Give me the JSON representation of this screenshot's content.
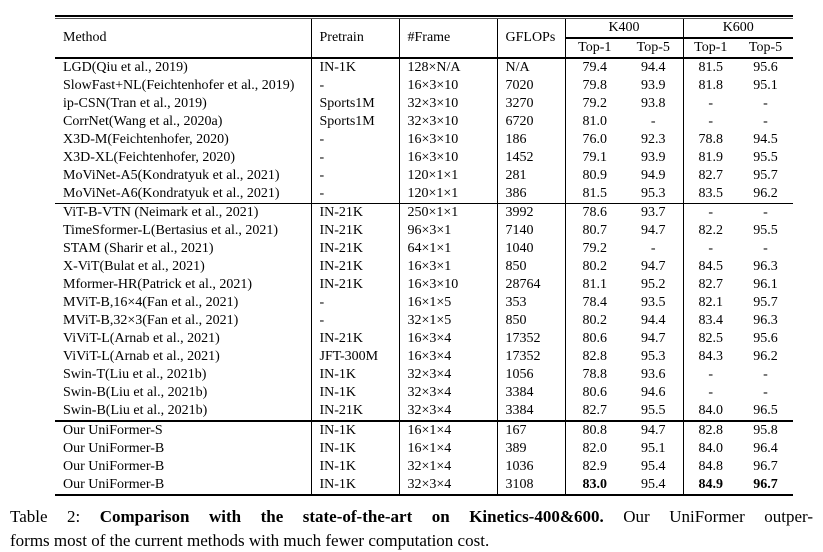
{
  "table": {
    "columns": [
      "method",
      "pretrain",
      "frame",
      "gflops",
      "k400-top1",
      "k400-top5",
      "k600-top1",
      "k600-top5"
    ],
    "headers": {
      "method": "Method",
      "pretrain": "Pretrain",
      "frame": "#Frame",
      "gflops": "GFLOPs",
      "k400": "K400",
      "k600": "K600",
      "top1": "Top-1",
      "top5": "Top-5"
    },
    "groups": [
      {
        "name": "cnn-methods",
        "rows": [
          {
            "cells": [
              "LGD(Qiu et al., 2019)",
              "IN-1K",
              "128×N/A",
              "N/A",
              "79.4",
              "94.4",
              "81.5",
              "95.6"
            ]
          },
          {
            "cells": [
              "SlowFast+NL(Feichtenhofer et al., 2019)",
              "-",
              "16×3×10",
              "7020",
              "79.8",
              "93.9",
              "81.8",
              "95.1"
            ]
          },
          {
            "cells": [
              "ip-CSN(Tran et al., 2019)",
              "Sports1M",
              "32×3×10",
              "3270",
              "79.2",
              "93.8",
              "-",
              "-"
            ]
          },
          {
            "cells": [
              "CorrNet(Wang et al., 2020a)",
              "Sports1M",
              "32×3×10",
              "6720",
              "81.0",
              "-",
              "-",
              "-"
            ]
          },
          {
            "cells": [
              "X3D-M(Feichtenhofer, 2020)",
              "-",
              "16×3×10",
              "186",
              "76.0",
              "92.3",
              "78.8",
              "94.5"
            ]
          },
          {
            "cells": [
              "X3D-XL(Feichtenhofer, 2020)",
              "-",
              "16×3×10",
              "1452",
              "79.1",
              "93.9",
              "81.9",
              "95.5"
            ]
          },
          {
            "cells": [
              "MoViNet-A5(Kondratyuk et al., 2021)",
              "-",
              "120×1×1",
              "281",
              "80.9",
              "94.9",
              "82.7",
              "95.7"
            ]
          },
          {
            "cells": [
              "MoViNet-A6(Kondratyuk et al., 2021)",
              "-",
              "120×1×1",
              "386",
              "81.5",
              "95.3",
              "83.5",
              "96.2"
            ]
          }
        ]
      },
      {
        "name": "transformer-methods",
        "rows": [
          {
            "cells": [
              "ViT-B-VTN (Neimark et al., 2021)",
              "IN-21K",
              "250×1×1",
              "3992",
              "78.6",
              "93.7",
              "-",
              "-"
            ]
          },
          {
            "cells": [
              "TimeSformer-L(Bertasius et al., 2021)",
              "IN-21K",
              "96×3×1",
              "7140",
              "80.7",
              "94.7",
              "82.2",
              "95.5"
            ]
          },
          {
            "cells": [
              "STAM (Sharir et al., 2021)",
              "IN-21K",
              "64×1×1",
              "1040",
              "79.2",
              "-",
              "-",
              "-"
            ]
          },
          {
            "cells": [
              "X-ViT(Bulat et al., 2021)",
              "IN-21K",
              "16×3×1",
              "850",
              "80.2",
              "94.7",
              "84.5",
              "96.3"
            ]
          },
          {
            "cells": [
              "Mformer-HR(Patrick et al., 2021)",
              "IN-21K",
              "16×3×10",
              "28764",
              "81.1",
              "95.2",
              "82.7",
              "96.1"
            ]
          },
          {
            "cells": [
              "MViT-B,16×4(Fan et al., 2021)",
              "-",
              "16×1×5",
              "353",
              "78.4",
              "93.5",
              "82.1",
              "95.7"
            ]
          },
          {
            "cells": [
              "MViT-B,32×3(Fan et al., 2021)",
              "-",
              "32×1×5",
              "850",
              "80.2",
              "94.4",
              "83.4",
              "96.3"
            ]
          },
          {
            "cells": [
              "ViViT-L(Arnab et al., 2021)",
              "IN-21K",
              "16×3×4",
              "17352",
              "80.6",
              "94.7",
              "82.5",
              "95.6"
            ]
          },
          {
            "cells": [
              "ViViT-L(Arnab et al., 2021)",
              "JFT-300M",
              "16×3×4",
              "17352",
              "82.8",
              "95.3",
              "84.3",
              "96.2"
            ]
          },
          {
            "cells": [
              "Swin-T(Liu et al., 2021b)",
              "IN-1K",
              "32×3×4",
              "1056",
              "78.8",
              "93.6",
              "-",
              "-"
            ]
          },
          {
            "cells": [
              "Swin-B(Liu et al., 2021b)",
              "IN-1K",
              "32×3×4",
              "3384",
              "80.6",
              "94.6",
              "-",
              "-"
            ]
          },
          {
            "cells": [
              "Swin-B(Liu et al., 2021b)",
              "IN-21K",
              "32×3×4",
              "3384",
              "82.7",
              "95.5",
              "84.0",
              "96.5"
            ]
          }
        ]
      },
      {
        "name": "ours",
        "rows": [
          {
            "cells": [
              "Our UniFormer-S",
              "IN-1K",
              "16×1×4",
              "167",
              "80.8",
              "94.7",
              "82.8",
              "95.8"
            ]
          },
          {
            "cells": [
              "Our UniFormer-B",
              "IN-1K",
              "16×1×4",
              "389",
              "82.0",
              "95.1",
              "84.0",
              "96.4"
            ]
          },
          {
            "cells": [
              "Our UniFormer-B",
              "IN-1K",
              "32×1×4",
              "1036",
              "82.9",
              "95.4",
              "84.8",
              "96.7"
            ]
          },
          {
            "cells": [
              "Our UniFormer-B",
              "IN-1K",
              "32×3×4",
              "3108",
              "83.0",
              "95.4",
              "84.9",
              "96.7"
            ],
            "bold": [
              4,
              6,
              7
            ]
          }
        ]
      }
    ]
  },
  "caption": {
    "label": "Table 2:",
    "bold_text": "Comparison with the state-of-the-art on Kinetics-400&600.",
    "line1_rest": "Our UniFormer outper-",
    "line2": "forms most of the current methods with much fewer computation cost."
  }
}
